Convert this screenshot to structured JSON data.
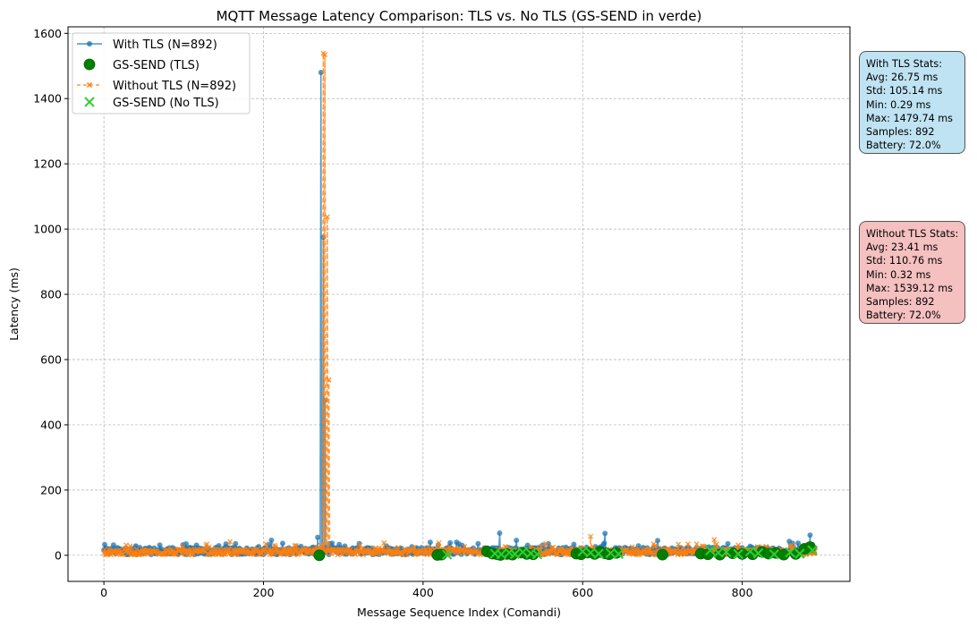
{
  "chart_data": {
    "type": "line",
    "title": "MQTT Message Latency Comparison: TLS vs. No TLS (GS-SEND in verde)",
    "xlabel": "Message Sequence Index (Comandi)",
    "ylabel": "Latency (ms)",
    "xlim": [
      -45,
      935
    ],
    "ylim": [
      -80,
      1620
    ],
    "xticks": [
      0,
      200,
      400,
      600,
      800
    ],
    "yticks": [
      0,
      200,
      400,
      600,
      800,
      1000,
      1200,
      1400,
      1600
    ],
    "grid": true,
    "legend_position": "top-left",
    "n_points": 892,
    "series": [
      {
        "name": "With TLS (N=892)",
        "color": "#1f77b4",
        "style": "solid line, circle markers",
        "baseline_range_ms": [
          0.29,
          70
        ],
        "spikes": [
          {
            "x": 268,
            "y": 55
          },
          {
            "x": 272,
            "y": 1480
          },
          {
            "x": 275,
            "y": 975
          },
          {
            "x": 277,
            "y": 475
          },
          {
            "x": 496,
            "y": 68
          },
          {
            "x": 628,
            "y": 67
          },
          {
            "x": 885,
            "y": 62
          }
        ]
      },
      {
        "name": "GS-SEND (TLS)",
        "color": "#008000",
        "style": "large circle markers",
        "x": [
          270,
          418,
          423,
          480,
          487,
          493,
          497,
          505,
          512,
          523,
          530,
          538,
          592,
          598,
          606,
          615,
          622,
          628,
          633,
          642,
          700,
          748,
          757,
          772,
          788,
          800,
          813,
          825,
          833,
          842,
          852,
          867,
          878,
          885
        ],
        "y": [
          0,
          1,
          2,
          12,
          5,
          3,
          1,
          4,
          2,
          8,
          4,
          3,
          5,
          3,
          8,
          4,
          10,
          6,
          3,
          7,
          2,
          5,
          3,
          2,
          6,
          4,
          3,
          10,
          5,
          7,
          2,
          4,
          20,
          25
        ]
      },
      {
        "name": "Without TLS (N=892)",
        "color": "#ff7f0e",
        "style": "dashed line, x markers",
        "baseline_range_ms": [
          0.32,
          60
        ],
        "spikes": [
          {
            "x": 275,
            "y": 1539
          },
          {
            "x": 277,
            "y": 1535
          },
          {
            "x": 280,
            "y": 1037
          },
          {
            "x": 282,
            "y": 538
          },
          {
            "x": 285,
            "y": 5
          },
          {
            "x": 610,
            "y": 58
          },
          {
            "x": 765,
            "y": 48
          }
        ]
      },
      {
        "name": "GS-SEND (No TLS)",
        "color": "#32cd32",
        "style": "large x markers",
        "x": [
          430,
          490,
          498,
          508,
          515,
          525,
          535,
          543,
          600,
          610,
          620,
          635,
          645,
          760,
          770,
          780,
          795,
          810,
          820,
          840,
          860,
          872,
          888
        ],
        "y": [
          2,
          5,
          3,
          8,
          4,
          10,
          6,
          3,
          12,
          8,
          5,
          7,
          4,
          15,
          8,
          10,
          4,
          12,
          6,
          3,
          9,
          5,
          15
        ]
      }
    ]
  },
  "stats": {
    "tls": [
      "With TLS Stats:",
      "Avg: 26.75 ms",
      "Std: 105.14 ms",
      "Min: 0.29 ms",
      "Max: 1479.74 ms",
      "Samples: 892",
      "Battery: 72.0%"
    ],
    "notls": [
      "Without TLS Stats:",
      "Avg: 23.41 ms",
      "Std: 110.76 ms",
      "Min: 0.32 ms",
      "Max: 1539.12 ms",
      "Samples: 892",
      "Battery: 72.0%"
    ]
  }
}
